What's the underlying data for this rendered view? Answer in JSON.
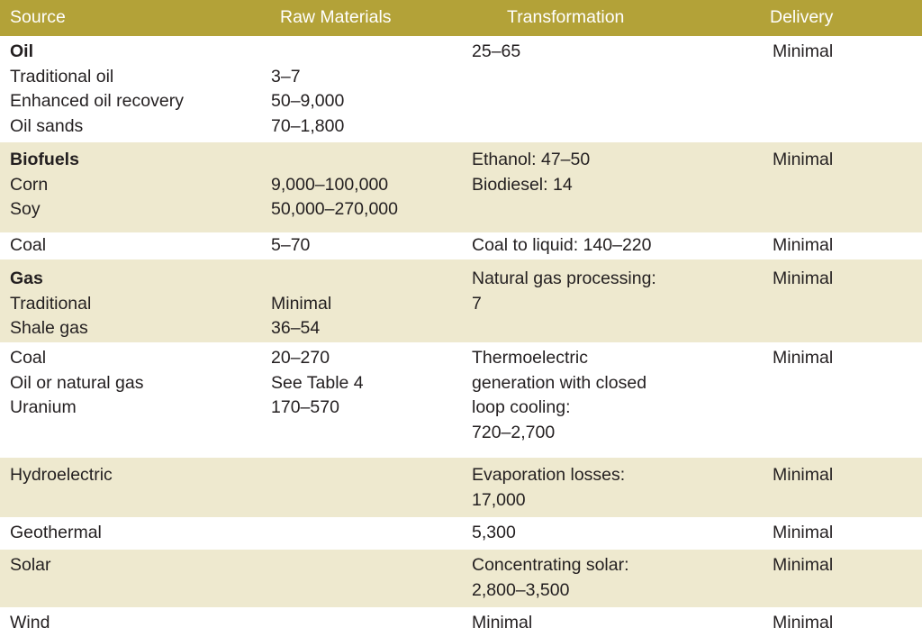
{
  "headers": {
    "source": "Source",
    "raw": "Raw Materials",
    "transformation": "Transformation",
    "delivery": "Delivery"
  },
  "rows": [
    {
      "source": [
        "Oil",
        "Traditional oil",
        "Enhanced oil recovery",
        "Oil sands"
      ],
      "raw": [
        "",
        "3–7",
        "50–9,000",
        "70–1,800"
      ],
      "transformation": [
        "25–65"
      ],
      "delivery": "Minimal"
    },
    {
      "source": [
        "Biofuels",
        "Corn",
        "Soy"
      ],
      "raw": [
        "",
        "9,000–100,000",
        "50,000–270,000"
      ],
      "transformation": [
        "Ethanol: 47–50",
        "Biodiesel: 14"
      ],
      "delivery": "Minimal"
    },
    {
      "source": [
        "Coal"
      ],
      "raw": [
        "5–70"
      ],
      "transformation": [
        "Coal to liquid: 140–220"
      ],
      "delivery": "Minimal"
    },
    {
      "source": [
        "Gas",
        "Traditional",
        "Shale gas"
      ],
      "raw": [
        "",
        "Minimal",
        "36–54"
      ],
      "transformation": [
        "Natural gas processing:",
        "7"
      ],
      "delivery": "Minimal"
    },
    {
      "source": [
        "Coal",
        "Oil or natural gas",
        "Uranium"
      ],
      "raw": [
        "20–270",
        "See Table 4",
        "170–570"
      ],
      "transformation": [
        "Thermoelectric",
        "generation with closed",
        "loop cooling:",
        "720–2,700"
      ],
      "delivery": "Minimal"
    },
    {
      "source": [
        "Hydroelectric"
      ],
      "raw": [
        ""
      ],
      "transformation": [
        "Evaporation losses:",
        "17,000"
      ],
      "delivery": "Minimal"
    },
    {
      "source": [
        "Geothermal"
      ],
      "raw": [
        ""
      ],
      "transformation": [
        "5,300"
      ],
      "delivery": "Minimal"
    },
    {
      "source": [
        "Solar"
      ],
      "raw": [
        ""
      ],
      "transformation": [
        "Concentrating solar:",
        "2,800–3,500"
      ],
      "delivery": "Minimal"
    },
    {
      "source": [
        "Wind"
      ],
      "raw": [
        ""
      ],
      "transformation": [
        "Minimal"
      ],
      "delivery": "Minimal"
    }
  ],
  "colors": {
    "header": "#b3a238",
    "tint": "#eee9cf",
    "white": "#ffffff"
  }
}
